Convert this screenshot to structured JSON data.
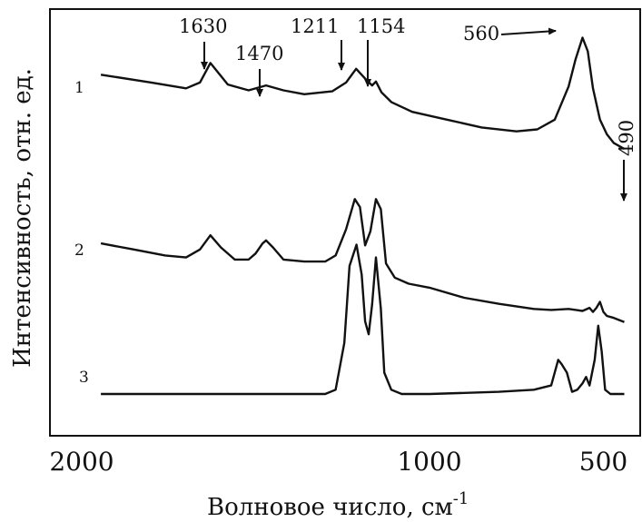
{
  "chart_data": {
    "type": "line",
    "xlabel": "Волновое число, см",
    "xlabel_sup": "-1",
    "ylabel": "Интенсивность, отн. ед.",
    "x_ticks": [
      "2000",
      "1000",
      "500"
    ],
    "x_reversed": true,
    "xlim": [
      2100,
      400
    ],
    "ylim": [
      0,
      100
    ],
    "grid": false,
    "annotations": [
      {
        "id": "a1630",
        "text": "1630",
        "x": 1630
      },
      {
        "id": "a1470",
        "text": "1470",
        "x": 1470
      },
      {
        "id": "a1211",
        "text": "1211",
        "x": 1211
      },
      {
        "id": "a1154",
        "text": "1154",
        "x": 1154
      },
      {
        "id": "a560",
        "text": "560",
        "x": 560
      },
      {
        "id": "a490",
        "text": "490",
        "x": 490
      }
    ],
    "series": [
      {
        "label": "1",
        "x": [
          1945,
          1800,
          1700,
          1660,
          1630,
          1580,
          1520,
          1470,
          1420,
          1360,
          1280,
          1240,
          1211,
          1185,
          1165,
          1154,
          1138,
          1110,
          1050,
          950,
          850,
          750,
          690,
          640,
          600,
          580,
          560,
          545,
          530,
          510,
          490,
          470,
          440
        ],
        "y": [
          78,
          74,
          71,
          74,
          84,
          73,
          70,
          72.5,
          70,
          68,
          69.5,
          74,
          81,
          76,
          72.5,
          74.5,
          69,
          64,
          59,
          55,
          51,
          49,
          50,
          55,
          72,
          86,
          97,
          90,
          71,
          55,
          47.5,
          43,
          40
        ]
      },
      {
        "label": "2",
        "x": [
          1945,
          1850,
          1760,
          1700,
          1660,
          1630,
          1600,
          1560,
          1520,
          1500,
          1480,
          1470,
          1450,
          1420,
          1360,
          1300,
          1270,
          1240,
          1215,
          1200,
          1185,
          1170,
          1154,
          1140,
          1125,
          1100,
          1060,
          1000,
          900,
          800,
          700,
          650,
          600,
          560,
          540,
          530,
          520,
          510,
          500,
          490,
          470,
          440
        ],
        "y": [
          45,
          42,
          39,
          38,
          42,
          49,
          43,
          37,
          37,
          40,
          45,
          46.5,
          43,
          37,
          36,
          36,
          39,
          52,
          67,
          63,
          44,
          51,
          67,
          62,
          35,
          28,
          25,
          23,
          18,
          15,
          12.5,
          12,
          12.5,
          11.5,
          13,
          11,
          13,
          16,
          11,
          9,
          8,
          6
        ]
      },
      {
        "label": "3",
        "x": [
          1945,
          1600,
          1400,
          1300,
          1270,
          1245,
          1230,
          1210,
          1195,
          1185,
          1175,
          1165,
          1154,
          1140,
          1130,
          1110,
          1080,
          1000,
          800,
          700,
          650,
          630,
          620,
          605,
          590,
          575,
          560,
          550,
          540,
          525,
          515,
          505,
          495,
          480,
          460,
          440
        ],
        "y": [
          0,
          0,
          0,
          0,
          1,
          12,
          30,
          35,
          28,
          17,
          14,
          21,
          32,
          20,
          5,
          1,
          0,
          0,
          0.5,
          1,
          2,
          8,
          7,
          5,
          0.5,
          1,
          2.5,
          4,
          2,
          8,
          16,
          10,
          1,
          0,
          0,
          0
        ]
      }
    ]
  }
}
